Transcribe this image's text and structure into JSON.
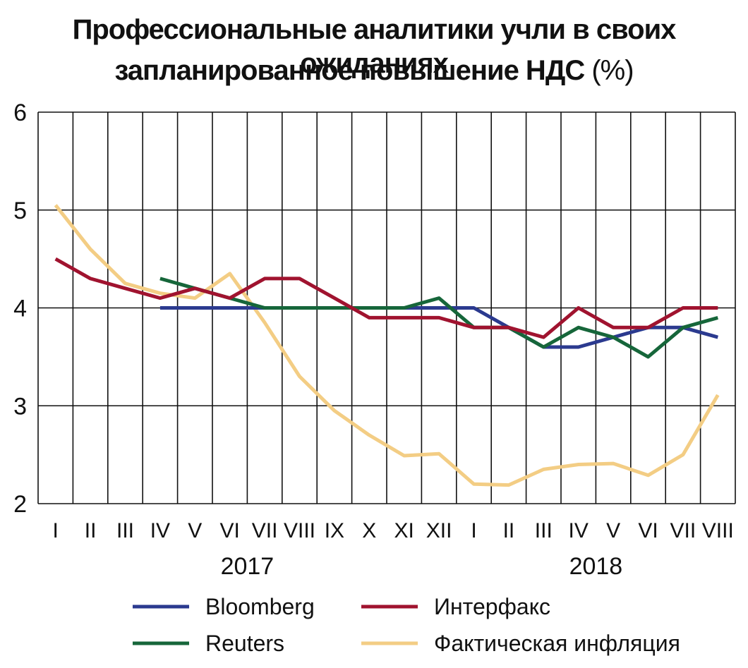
{
  "title": {
    "line1": "Профессиональные аналитики учли в своих ожиданиях",
    "line2": "запланированное повышение НДС",
    "unit": "(%)"
  },
  "chart_data": {
    "type": "line",
    "title": "Профессиональные аналитики учли в своих ожиданиях запланированное повышение НДС (%)",
    "categories": [
      "I",
      "II",
      "III",
      "IV",
      "V",
      "VI",
      "VII",
      "VIII",
      "IX",
      "X",
      "XI",
      "XII",
      "I",
      "II",
      "III",
      "IV",
      "V",
      "VI",
      "VII",
      "VIII"
    ],
    "years": [
      {
        "label": "2017",
        "from": 0,
        "to": 11
      },
      {
        "label": "2018",
        "from": 12,
        "to": 19
      }
    ],
    "ylim": [
      2,
      6
    ],
    "yticks": [
      2,
      3,
      4,
      5,
      6
    ],
    "grid": "vertical and horizontal",
    "legend": "bottom",
    "series": [
      {
        "name": "Bloomberg",
        "color": "#2b3a8f",
        "values": [
          null,
          null,
          null,
          4.0,
          4.0,
          4.0,
          4.0,
          4.0,
          4.0,
          4.0,
          4.0,
          4.0,
          4.0,
          3.8,
          3.6,
          3.6,
          3.7,
          3.8,
          3.8,
          3.7
        ]
      },
      {
        "name": "Интерфакс",
        "color": "#a0132f",
        "values": [
          4.5,
          4.3,
          4.2,
          4.1,
          4.2,
          4.1,
          4.3,
          4.3,
          4.1,
          3.9,
          3.9,
          3.9,
          3.8,
          3.8,
          3.7,
          4.0,
          3.8,
          3.8,
          4.0,
          4.0
        ]
      },
      {
        "name": "Reuters",
        "color": "#16663a",
        "values": [
          null,
          null,
          null,
          4.3,
          4.2,
          4.1,
          4.0,
          4.0,
          4.0,
          4.0,
          4.0,
          4.1,
          3.8,
          3.8,
          3.6,
          3.8,
          3.7,
          3.5,
          3.8,
          3.9
        ]
      },
      {
        "name": "Фактическая инфляция",
        "color": "#f3cd84",
        "values": [
          5.05,
          4.6,
          4.25,
          4.15,
          4.1,
          4.35,
          3.85,
          3.3,
          2.95,
          2.7,
          2.49,
          2.51,
          2.2,
          2.19,
          2.35,
          2.4,
          2.41,
          2.29,
          2.5,
          3.11
        ]
      }
    ]
  }
}
